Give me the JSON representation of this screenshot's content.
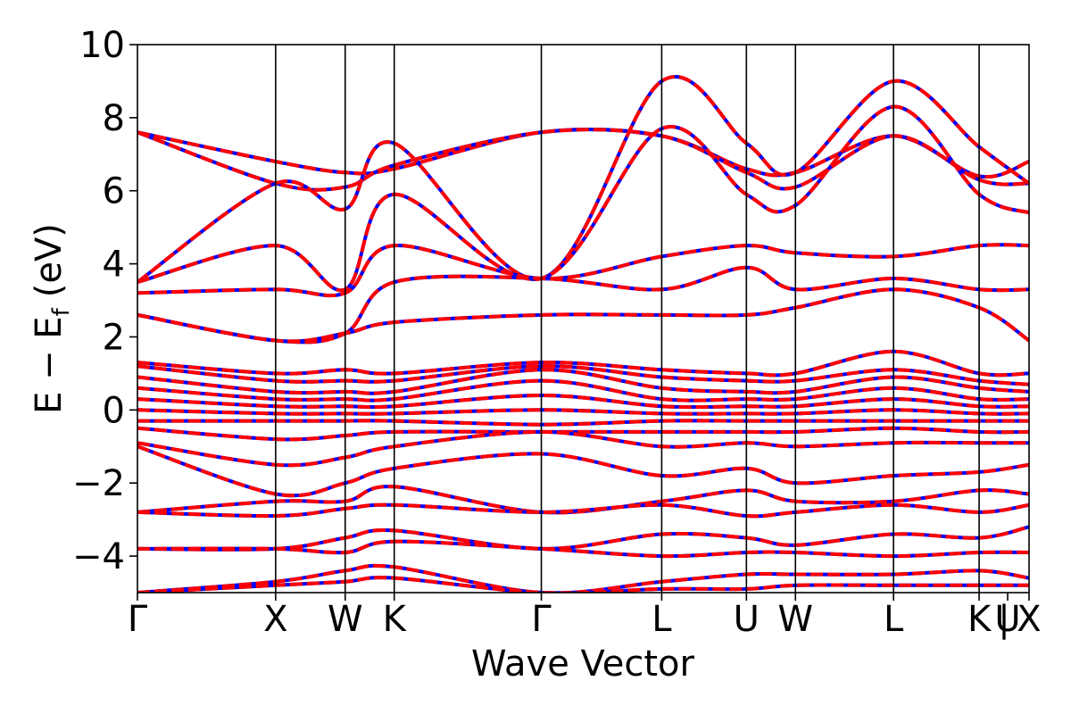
{
  "chart_data": {
    "type": "line",
    "title": "",
    "xlabel": "Wave Vector",
    "ylabel_main": "E − E",
    "ylabel_sub": "f",
    "ylabel_unit": "(eV)",
    "ylim": [
      -5,
      10
    ],
    "yticks": [
      -4,
      -2,
      0,
      2,
      4,
      6,
      8,
      10
    ],
    "ytick_labels": [
      "−4",
      "−2",
      "0",
      "2",
      "4",
      "6",
      "8",
      "10"
    ],
    "grid": false,
    "legend": "none",
    "kpath_labels": [
      {
        "label": "Γ",
        "k": 0.0
      },
      {
        "label": "X",
        "k": 0.155
      },
      {
        "label": "W",
        "k": 0.233
      },
      {
        "label": "K",
        "k": 0.288
      },
      {
        "label": "Γ",
        "k": 0.453
      },
      {
        "label": "L",
        "k": 0.588
      },
      {
        "label": "U",
        "k": 0.683
      },
      {
        "label": "W",
        "k": 0.738
      },
      {
        "label": "L",
        "k": 0.848
      },
      {
        "label": "K",
        "k": 0.944
      },
      {
        "label": "|",
        "k": 0.972
      },
      {
        "label": "U",
        "k": 0.976
      },
      {
        "label": "X",
        "k": 1.0
      }
    ],
    "vlines_k": [
      0.155,
      0.233,
      0.288,
      0.453,
      0.588,
      0.683,
      0.738,
      0.848,
      0.944
    ],
    "series_style": [
      {
        "color": "#0000ff",
        "dash": "solid"
      },
      {
        "color": "#ff0000",
        "dash": "dashed"
      }
    ],
    "bands_k": [
      0.0,
      0.155,
      0.233,
      0.288,
      0.453,
      0.588,
      0.683,
      0.738,
      0.848,
      0.944,
      1.0
    ],
    "bands": [
      [
        7.6,
        6.8,
        6.5,
        6.6,
        7.6,
        7.5,
        6.6,
        6.5,
        7.5,
        6.4,
        6.8
      ],
      [
        7.6,
        6.2,
        6.1,
        6.7,
        7.6,
        7.5,
        6.5,
        6.1,
        7.5,
        6.3,
        6.2
      ],
      [
        3.5,
        6.2,
        5.5,
        7.3,
        3.6,
        9.0,
        7.3,
        6.5,
        9.0,
        7.2,
        6.2
      ],
      [
        3.5,
        4.5,
        3.3,
        5.9,
        3.6,
        7.7,
        5.9,
        5.6,
        8.3,
        5.9,
        5.4
      ],
      [
        3.2,
        3.3,
        3.2,
        4.5,
        3.6,
        4.2,
        4.5,
        4.3,
        4.2,
        4.5,
        4.5
      ],
      [
        2.6,
        1.9,
        2.1,
        3.5,
        3.6,
        3.3,
        3.9,
        3.3,
        3.6,
        3.3,
        3.3
      ],
      [
        2.6,
        1.9,
        2.1,
        2.4,
        2.6,
        2.6,
        2.6,
        2.8,
        3.3,
        2.8,
        1.9
      ],
      [
        1.3,
        1.0,
        1.1,
        1.0,
        1.3,
        1.1,
        1.0,
        1.0,
        1.6,
        1.0,
        1.0
      ],
      [
        1.2,
        0.8,
        0.8,
        0.8,
        1.2,
        0.9,
        0.8,
        0.8,
        1.1,
        0.8,
        0.7
      ],
      [
        0.9,
        0.5,
        0.5,
        0.5,
        1.1,
        0.6,
        0.5,
        0.5,
        0.9,
        0.6,
        0.5
      ],
      [
        0.6,
        0.3,
        0.3,
        0.3,
        0.8,
        0.3,
        0.3,
        0.3,
        0.6,
        0.3,
        0.3
      ],
      [
        0.3,
        0.1,
        0.1,
        0.1,
        0.4,
        0.1,
        0.1,
        0.1,
        0.3,
        0.1,
        0.1
      ],
      [
        0.0,
        -0.1,
        -0.1,
        -0.1,
        0.0,
        -0.1,
        -0.1,
        -0.1,
        0.0,
        -0.1,
        -0.1
      ],
      [
        -0.3,
        -0.3,
        -0.3,
        -0.3,
        -0.4,
        -0.3,
        -0.3,
        -0.3,
        -0.3,
        -0.3,
        -0.3
      ],
      [
        -0.5,
        -0.8,
        -0.7,
        -0.6,
        -0.6,
        -0.6,
        -0.6,
        -0.6,
        -0.5,
        -0.6,
        -0.6
      ],
      [
        -0.9,
        -1.5,
        -1.3,
        -1.0,
        -0.6,
        -1.0,
        -0.9,
        -1.0,
        -0.9,
        -0.9,
        -0.9
      ],
      [
        -1.0,
        -2.3,
        -2.0,
        -1.6,
        -1.2,
        -1.8,
        -1.6,
        -2.0,
        -1.8,
        -1.7,
        -1.5
      ],
      [
        -2.8,
        -2.5,
        -2.5,
        -2.1,
        -2.8,
        -2.5,
        -2.2,
        -2.5,
        -2.5,
        -2.2,
        -2.3
      ],
      [
        -2.8,
        -2.9,
        -2.7,
        -2.6,
        -2.8,
        -2.6,
        -2.9,
        -2.8,
        -2.6,
        -2.8,
        -2.6
      ],
      [
        -3.8,
        -3.8,
        -3.5,
        -3.3,
        -3.8,
        -3.4,
        -3.5,
        -3.7,
        -3.4,
        -3.5,
        -3.2
      ],
      [
        -3.8,
        -3.8,
        -3.9,
        -3.6,
        -3.8,
        -4.0,
        -3.9,
        -3.9,
        -4.0,
        -3.9,
        -3.9
      ],
      [
        -5.0,
        -4.7,
        -4.4,
        -4.3,
        -5.0,
        -4.7,
        -4.5,
        -4.5,
        -4.5,
        -4.4,
        -4.6
      ],
      [
        -5.0,
        -4.8,
        -4.7,
        -4.6,
        -5.0,
        -4.9,
        -4.9,
        -4.8,
        -4.8,
        -4.8,
        -4.8
      ]
    ]
  }
}
